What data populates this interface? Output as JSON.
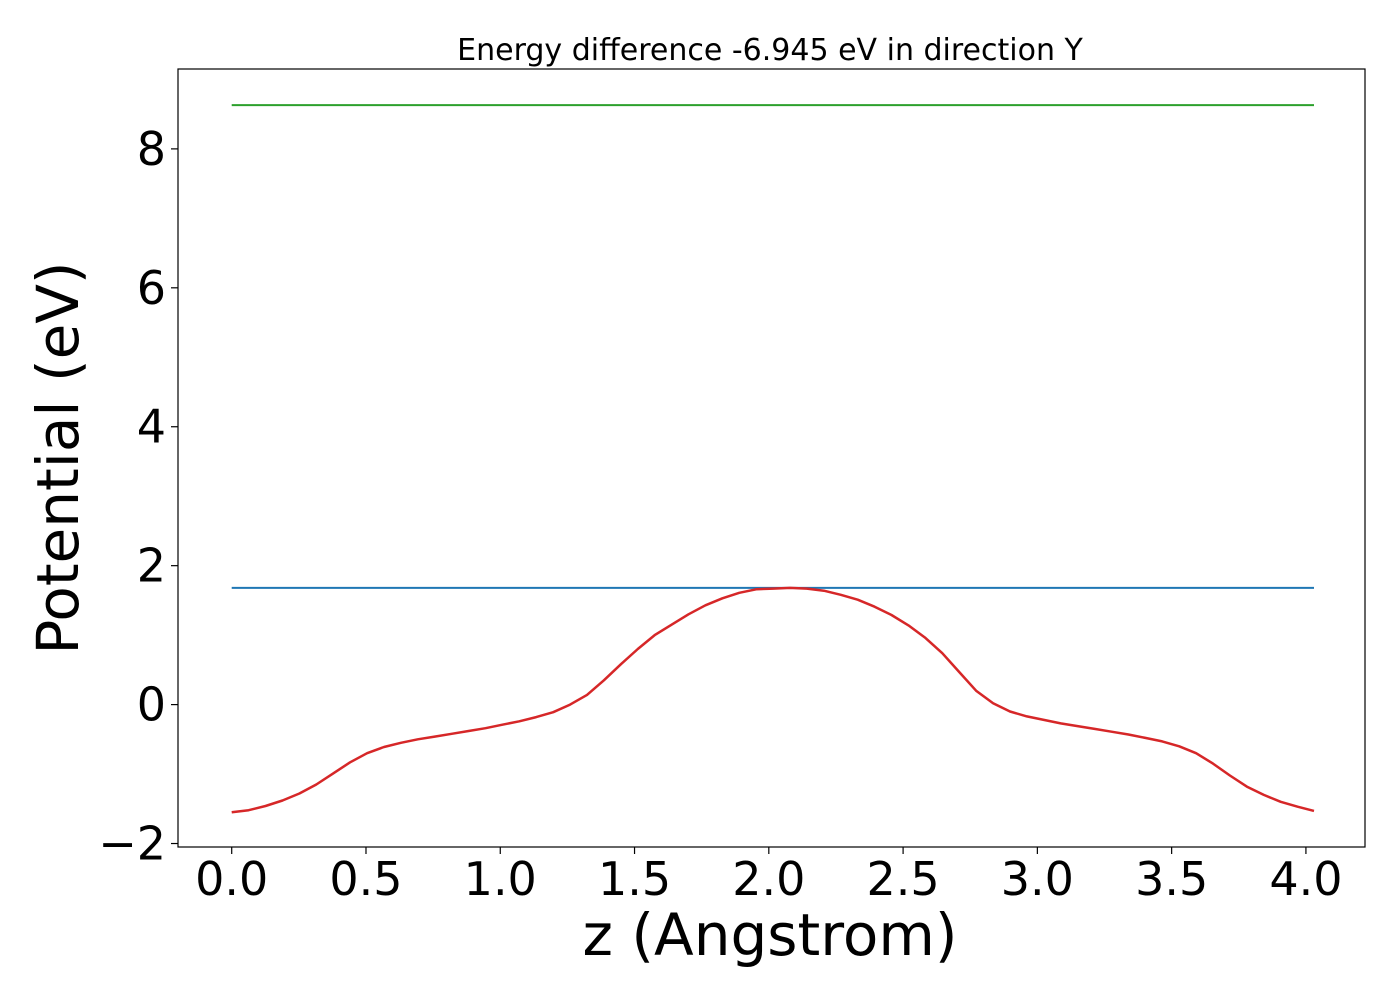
{
  "chart_data": {
    "type": "line",
    "title": "Energy difference -6.945 eV in direction Y",
    "xlabel": "z (Angstrom)",
    "ylabel": "Potential (eV)",
    "xlim": [
      -0.2,
      4.22
    ],
    "ylim": [
      -2.05,
      9.15
    ],
    "xticks": [
      0.0,
      0.5,
      1.0,
      1.5,
      2.0,
      2.5,
      3.0,
      3.5,
      4.0
    ],
    "xtick_labels": [
      "0.0",
      "0.5",
      "1.0",
      "1.5",
      "2.0",
      "2.5",
      "3.0",
      "3.5",
      "4.0"
    ],
    "yticks": [
      -2,
      0,
      2,
      4,
      6,
      8
    ],
    "ytick_labels": [
      "−2",
      "0",
      "2",
      "4",
      "6",
      "8"
    ],
    "grid": false,
    "series": [
      {
        "color": "#2ca02c",
        "x": [
          0.0,
          4.03
        ],
        "y": [
          8.63,
          8.63
        ]
      },
      {
        "color": "#1f77b4",
        "x": [
          0.0,
          4.03
        ],
        "y": [
          1.68,
          1.68
        ]
      },
      {
        "color": "#d62728",
        "x": [
          0.0,
          0.063,
          0.126,
          0.189,
          0.252,
          0.315,
          0.378,
          0.441,
          0.504,
          0.567,
          0.63,
          0.693,
          0.756,
          0.819,
          0.882,
          0.945,
          1.008,
          1.071,
          1.134,
          1.197,
          1.26,
          1.323,
          1.386,
          1.449,
          1.512,
          1.575,
          1.638,
          1.701,
          1.764,
          1.827,
          1.89,
          1.953,
          2.016,
          2.079,
          2.142,
          2.205,
          2.268,
          2.331,
          2.394,
          2.457,
          2.52,
          2.583,
          2.646,
          2.709,
          2.772,
          2.835,
          2.898,
          2.961,
          3.024,
          3.087,
          3.15,
          3.213,
          3.276,
          3.339,
          3.402,
          3.465,
          3.528,
          3.591,
          3.654,
          3.717,
          3.78,
          3.843,
          3.906,
          3.969,
          4.03
        ],
        "y": [
          -1.55,
          -1.52,
          -1.46,
          -1.38,
          -1.28,
          -1.15,
          -0.99,
          -0.83,
          -0.7,
          -0.61,
          -0.55,
          -0.5,
          -0.46,
          -0.42,
          -0.38,
          -0.34,
          -0.29,
          -0.24,
          -0.18,
          -0.11,
          0.0,
          0.14,
          0.35,
          0.58,
          0.8,
          1.0,
          1.15,
          1.3,
          1.43,
          1.53,
          1.61,
          1.66,
          1.67,
          1.68,
          1.67,
          1.64,
          1.58,
          1.51,
          1.41,
          1.29,
          1.14,
          0.96,
          0.74,
          0.47,
          0.2,
          0.02,
          -0.1,
          -0.17,
          -0.22,
          -0.27,
          -0.31,
          -0.35,
          -0.39,
          -0.43,
          -0.48,
          -0.53,
          -0.6,
          -0.7,
          -0.85,
          -1.02,
          -1.18,
          -1.3,
          -1.4,
          -1.47,
          -1.53
        ]
      }
    ]
  }
}
